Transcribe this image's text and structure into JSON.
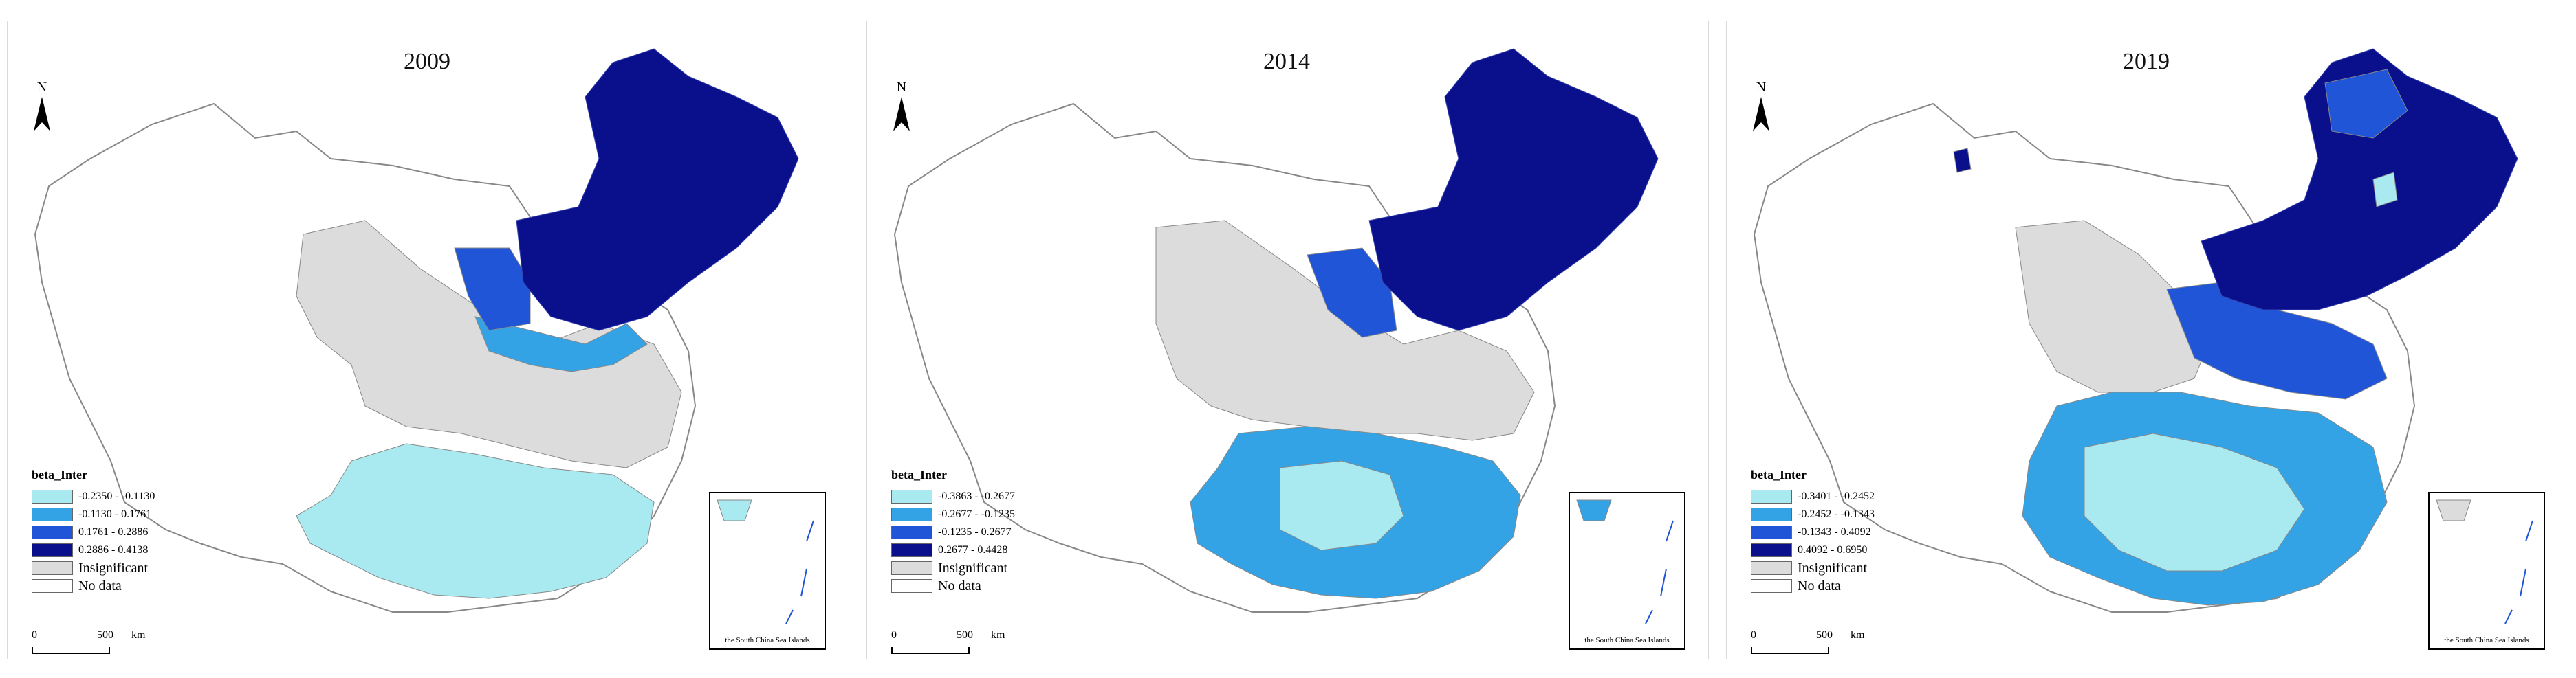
{
  "colors": {
    "class1": "#a8eaf0",
    "class2": "#33a3e6",
    "class3": "#1f55d6",
    "class4": "#0a0f8c",
    "insignificant": "#dcdcdc",
    "no_data": "#ffffff",
    "outline": "#888888"
  },
  "legend_title": "beta_Inter",
  "insignificant_label": "Insignificant",
  "no_data_label": "No data",
  "north_label": "N",
  "scale": {
    "zero": "0",
    "distance": "500",
    "unit": "km"
  },
  "inset_caption": "the South China Sea Islands",
  "panels": [
    {
      "year": "2009",
      "classes": [
        "-0.2350 - -0.1130",
        "-0.1130 - 0.1761",
        "0.1761 - 0.2886",
        "0.2886 - 0.4138"
      ]
    },
    {
      "year": "2014",
      "classes": [
        "-0.3863 - -0.2677",
        "-0.2677 - -0.1235",
        "-0.1235 - 0.2677",
        "0.2677 - 0.4428"
      ]
    },
    {
      "year": "2019",
      "classes": [
        "-0.3401 - -0.2452",
        "-0.2452 - -0.1343",
        "-0.1343 - 0.4092",
        "0.4092 - 0.6950"
      ]
    }
  ]
}
